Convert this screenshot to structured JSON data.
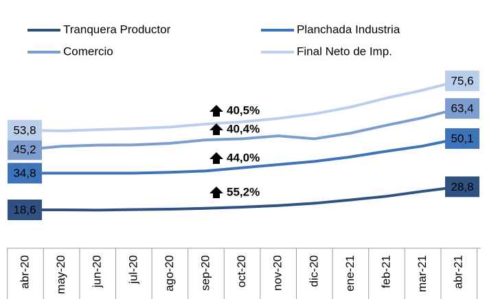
{
  "chart_data": {
    "type": "line",
    "categories": [
      "abr-20",
      "may-20",
      "jun-20",
      "jul-20",
      "ago-20",
      "sep-20",
      "oct-20",
      "nov-20",
      "dic-20",
      "ene-21",
      "feb-21",
      "mar-21",
      "abr-21"
    ],
    "series": [
      {
        "name": "Tranquera Productor",
        "color": "#2f5283",
        "values": [
          18.6,
          18.6,
          18.5,
          18.7,
          18.9,
          19.3,
          19.8,
          20.5,
          21.5,
          23.0,
          24.6,
          26.8,
          28.8
        ],
        "value_labels": [
          "18,6",
          null,
          null,
          null,
          null,
          null,
          null,
          null,
          null,
          null,
          null,
          null,
          "28,8"
        ]
      },
      {
        "name": "Planchada Industria",
        "color": "#3d74b9",
        "values": [
          34.8,
          34.8,
          34.8,
          34.8,
          35.2,
          35.8,
          37.2,
          38.6,
          40.0,
          42.0,
          44.5,
          46.8,
          50.1
        ],
        "value_labels": [
          "34,8",
          null,
          null,
          null,
          null,
          null,
          null,
          null,
          null,
          null,
          null,
          null,
          "50,1"
        ]
      },
      {
        "name": "Comercio",
        "color": "#7d9dd1",
        "values": [
          45.2,
          46.7,
          47.2,
          47.3,
          48.0,
          49.5,
          50.0,
          51.3,
          50.0,
          52.5,
          56.0,
          59.3,
          63.4
        ],
        "value_labels": [
          "45,2",
          null,
          null,
          null,
          null,
          null,
          null,
          null,
          null,
          null,
          null,
          null,
          "63,4"
        ]
      },
      {
        "name": "Final Neto de Imp.",
        "color": "#b9cfeb",
        "values": [
          53.8,
          53.5,
          54.0,
          54.5,
          55.2,
          56.5,
          57.5,
          59.0,
          61.0,
          64.0,
          68.0,
          71.5,
          75.6
        ],
        "value_labels": [
          "53,8",
          null,
          null,
          null,
          null,
          null,
          null,
          null,
          null,
          null,
          null,
          null,
          "75,6"
        ]
      }
    ],
    "annotations": [
      "55,2%",
      "44,0%",
      "40,4%",
      "40,5%"
    ]
  }
}
